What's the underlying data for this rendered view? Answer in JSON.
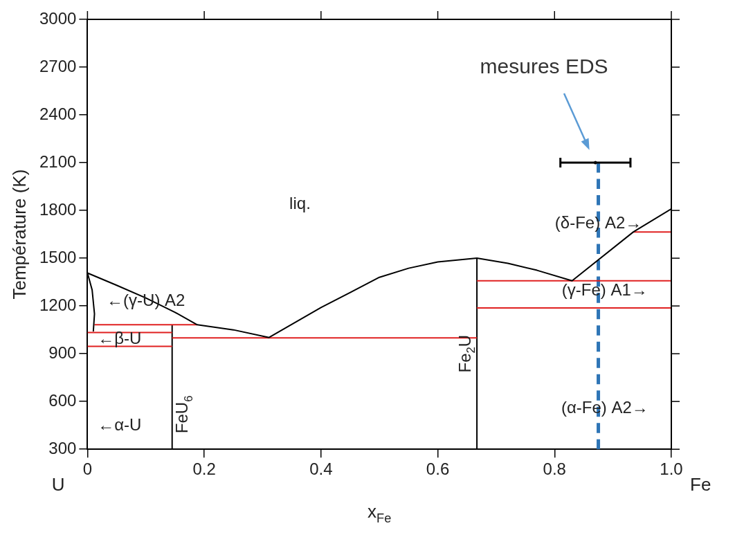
{
  "chart_data": {
    "type": "line",
    "xlabel": "x$_{Fe}$",
    "ylabel": "Température (K)",
    "xlim": [
      0,
      1
    ],
    "ylim": [
      300,
      3000
    ],
    "xticks": [
      0,
      0.2,
      0.4,
      0.6,
      0.8,
      {
        "value": 1,
        "label": "1.0"
      }
    ],
    "yticks": [
      300,
      600,
      900,
      1200,
      1500,
      1800,
      2100,
      2400,
      2700,
      3000
    ],
    "grid": false,
    "legend": false,
    "marker": "none",
    "series": [
      {
        "color": "#000000",
        "x": [
          0,
          0.05,
          0.1,
          0.15,
          0.188,
          0.25,
          0.311,
          0.4,
          0.5,
          0.55,
          0.6,
          0.667,
          0.72,
          0.77,
          0.83,
          0.935,
          1.0
        ],
        "values": [
          1407,
          1330,
          1250,
          1160,
          1082,
          1050,
          1002,
          1190,
          1380,
          1437,
          1477,
          1500,
          1468,
          1424,
          1358,
          1665,
          1810
        ]
      },
      {
        "color": "#000000",
        "x": [
          0,
          0.008,
          0.012,
          0.01
        ],
        "values": [
          1407,
          1300,
          1150,
          1040
        ]
      },
      {
        "color": "#e02020",
        "x": [
          0.012,
          0.188
        ],
        "values": [
          1082,
          1082
        ]
      },
      {
        "color": "#e02020",
        "x": [
          0,
          0.145
        ],
        "values": [
          1033,
          1033
        ]
      },
      {
        "color": "#e02020",
        "x": [
          0,
          0.145
        ],
        "values": [
          946,
          946
        ]
      },
      {
        "color": "#e02020",
        "x": [
          0.145,
          0.667
        ],
        "values": [
          1000,
          1000
        ]
      },
      {
        "color": "#e02020",
        "x": [
          0.667,
          1.0
        ],
        "values": [
          1358,
          1358
        ]
      },
      {
        "color": "#e02020",
        "x": [
          0.667,
          1.0
        ],
        "values": [
          1187,
          1187
        ]
      },
      {
        "color": "#e02020",
        "x": [
          0.935,
          1.0
        ],
        "values": [
          1665,
          1665
        ]
      },
      {
        "name": "FeU$_{6}$",
        "color": "#000000",
        "x": [
          0.145,
          0.145
        ],
        "values": [
          300,
          1082
        ]
      },
      {
        "name": "Fe$_{2}$U",
        "color": "#000000",
        "x": [
          0.667,
          0.667
        ],
        "values": [
          300,
          1500
        ]
      },
      {
        "color": "#2e75b6",
        "line_style": "dashed",
        "x": [
          0.875,
          0.875
        ],
        "values": [
          300,
          2100
        ]
      },
      {
        "type": "scatter",
        "marker": "circle",
        "color": "#000000",
        "x": [
          0.87
        ],
        "values": [
          2100
        ],
        "xerrors": [
          [
            0.81,
            0.93
          ]
        ]
      }
    ],
    "annotations": [
      "mesures EDS",
      "liq.",
      "←(γ-U) A2",
      "←β-U",
      "←α-U",
      "(δ-Fe) A2→",
      "(γ-Fe) A1→",
      "(α-Fe) A2→",
      "U",
      "Fe"
    ]
  }
}
